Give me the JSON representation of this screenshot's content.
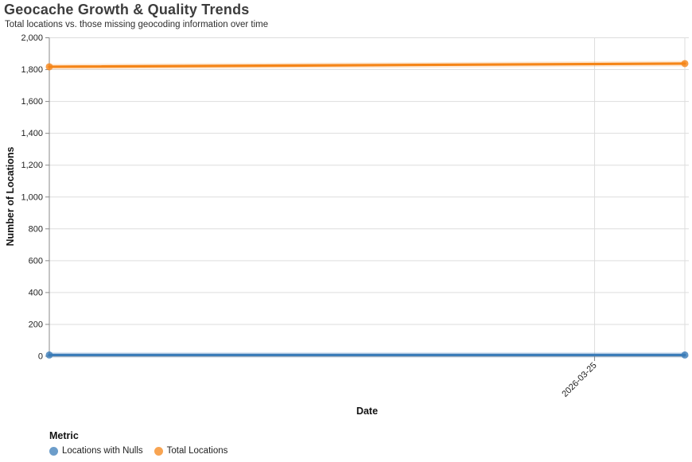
{
  "chart_data": {
    "type": "line",
    "title": "Geocache Growth & Quality Trends",
    "subtitle": "Total locations vs. those missing geocoding information over time",
    "xlabel": "Date",
    "ylabel": "Number of Locations",
    "ylim": [
      0,
      2000
    ],
    "grid": true,
    "legend_position": "bottom-left",
    "legend_title": "Metric",
    "y_ticks": [
      {
        "v": 0,
        "label": "0"
      },
      {
        "v": 200,
        "label": "200"
      },
      {
        "v": 400,
        "label": "400"
      },
      {
        "v": 600,
        "label": "600"
      },
      {
        "v": 800,
        "label": "800"
      },
      {
        "v": 1000,
        "label": "1,000"
      },
      {
        "v": 1200,
        "label": "1,200"
      },
      {
        "v": 1400,
        "label": "1,400"
      },
      {
        "v": 1600,
        "label": "1,600"
      },
      {
        "v": 1800,
        "label": "1,800"
      },
      {
        "v": 2000,
        "label": "2,000"
      }
    ],
    "x_ticks": [
      {
        "label": "2026-03-25",
        "pos": 0.858
      }
    ],
    "x_gridlines": [
      0.858,
      1.0
    ],
    "series": [
      {
        "name": "Locations with Nulls",
        "color": "#3B7CB8",
        "points": [
          {
            "pos": 0,
            "value": 8
          },
          {
            "pos": 1,
            "value": 8
          }
        ]
      },
      {
        "name": "Total Locations",
        "color": "#F58518",
        "points": [
          {
            "pos": 0,
            "value": 1818
          },
          {
            "pos": 1,
            "value": 1838
          }
        ]
      }
    ]
  },
  "style": {
    "grid_color": "#dddddd",
    "axis_color": "#888888",
    "label_color": "#1f1f1f",
    "title_color": "#3d3d3d"
  }
}
